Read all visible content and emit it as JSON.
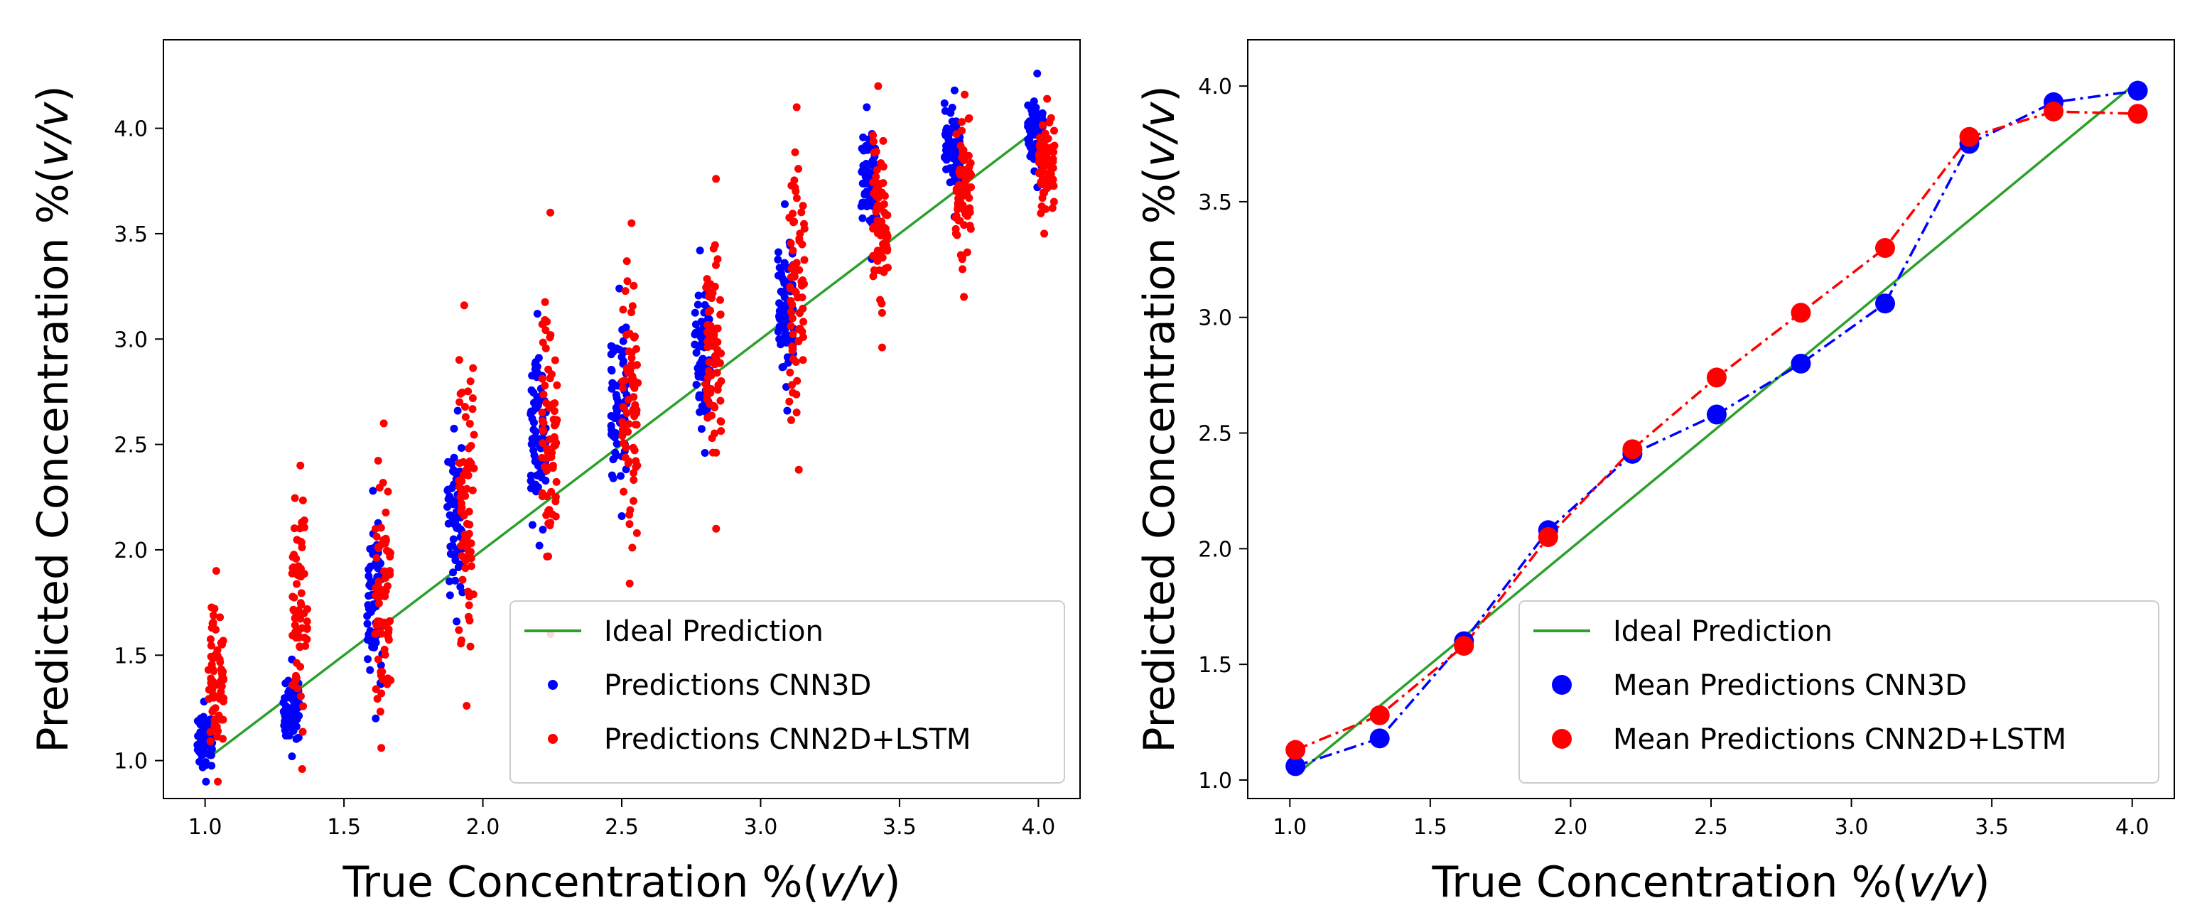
{
  "chart_data": [
    {
      "type": "scatter",
      "xlabel": "True Concentration %(v/v)",
      "ylabel": "Predicted Concentration %(v/v)",
      "xlim": [
        0.85,
        4.15
      ],
      "ylim": [
        0.82,
        4.42
      ],
      "xticks": [
        "1.0",
        "1.5",
        "2.0",
        "2.5",
        "3.0",
        "3.5",
        "4.0"
      ],
      "yticks": [
        "1.0",
        "1.5",
        "2.0",
        "2.5",
        "3.0",
        "3.5",
        "4.0"
      ],
      "legend_position": "lower-right",
      "legend": [
        "Ideal Prediction",
        "Predictions CNN3D",
        "Predictions CNN2D+LSTM"
      ],
      "ideal_line": {
        "name": "Ideal Prediction",
        "color": "#2ca02c",
        "x": [
          1.02,
          4.02
        ],
        "y": [
          1.02,
          4.02
        ]
      },
      "series": [
        {
          "name": "Predictions CNN3D",
          "color": "#0000ff",
          "groups": [
            {
              "x": 1.0,
              "y_range": [
                0.9,
                1.28
              ]
            },
            {
              "x": 1.31,
              "y_range": [
                1.02,
                1.48
              ]
            },
            {
              "x": 1.61,
              "y_range": [
                1.2,
                2.28
              ]
            },
            {
              "x": 1.9,
              "y_range": [
                1.66,
                2.66
              ]
            },
            {
              "x": 2.2,
              "y_range": [
                2.02,
                3.12
              ]
            },
            {
              "x": 2.49,
              "y_range": [
                2.16,
                3.24
              ]
            },
            {
              "x": 2.79,
              "y_range": [
                2.46,
                3.42
              ]
            },
            {
              "x": 3.09,
              "y_range": [
                2.66,
                3.64
              ]
            },
            {
              "x": 3.39,
              "y_range": [
                3.38,
                4.1
              ]
            },
            {
              "x": 3.69,
              "y_range": [
                3.58,
                4.18
              ]
            },
            {
              "x": 3.99,
              "y_range": [
                3.72,
                4.26
              ]
            }
          ]
        },
        {
          "name": "Predictions CNN2D+LSTM",
          "color": "#ff0000",
          "groups": [
            {
              "x": 1.04,
              "y_range": [
                0.9,
                1.9
              ]
            },
            {
              "x": 1.34,
              "y_range": [
                0.96,
                2.4
              ]
            },
            {
              "x": 1.64,
              "y_range": [
                1.06,
                2.6
              ]
            },
            {
              "x": 1.94,
              "y_range": [
                1.26,
                3.16
              ]
            },
            {
              "x": 2.24,
              "y_range": [
                1.6,
                3.6
              ]
            },
            {
              "x": 2.53,
              "y_range": [
                1.84,
                3.55
              ]
            },
            {
              "x": 2.83,
              "y_range": [
                2.1,
                3.76
              ]
            },
            {
              "x": 3.13,
              "y_range": [
                2.38,
                4.1
              ]
            },
            {
              "x": 3.43,
              "y_range": [
                2.96,
                4.2
              ]
            },
            {
              "x": 3.73,
              "y_range": [
                3.2,
                4.16
              ]
            },
            {
              "x": 4.03,
              "y_range": [
                3.5,
                4.14
              ]
            }
          ]
        }
      ]
    },
    {
      "type": "line",
      "xlabel": "True Concentration %(v/v)",
      "ylabel": "Predicted Concentration %(v/v)",
      "xlim": [
        0.85,
        4.15
      ],
      "ylim": [
        0.92,
        4.2
      ],
      "xticks": [
        "1.0",
        "1.5",
        "2.0",
        "2.5",
        "3.0",
        "3.5",
        "4.0"
      ],
      "yticks": [
        "1.0",
        "1.5",
        "2.0",
        "2.5",
        "3.0",
        "3.5",
        "4.0"
      ],
      "legend_position": "lower-right",
      "legend": [
        "Ideal Prediction",
        "Mean Predictions CNN3D",
        "Mean Predictions CNN2D+LSTM"
      ],
      "ideal_line": {
        "name": "Ideal Prediction",
        "color": "#2ca02c",
        "x": [
          1.02,
          4.02
        ],
        "y": [
          1.02,
          4.02
        ]
      },
      "series": [
        {
          "name": "Mean Predictions CNN3D",
          "color": "#0000ff",
          "x": [
            1.02,
            1.32,
            1.62,
            1.92,
            2.22,
            2.52,
            2.82,
            3.12,
            3.42,
            3.72,
            4.02
          ],
          "y": [
            1.06,
            1.18,
            1.6,
            2.08,
            2.41,
            2.58,
            2.8,
            3.06,
            3.75,
            3.93,
            3.98
          ]
        },
        {
          "name": "Mean Predictions CNN2D+LSTM",
          "color": "#ff0000",
          "x": [
            1.02,
            1.32,
            1.62,
            1.92,
            2.22,
            2.52,
            2.82,
            3.12,
            3.42,
            3.72,
            4.02
          ],
          "y": [
            1.13,
            1.28,
            1.58,
            2.05,
            2.43,
            2.74,
            3.02,
            3.3,
            3.78,
            3.89,
            3.88
          ]
        }
      ]
    }
  ]
}
